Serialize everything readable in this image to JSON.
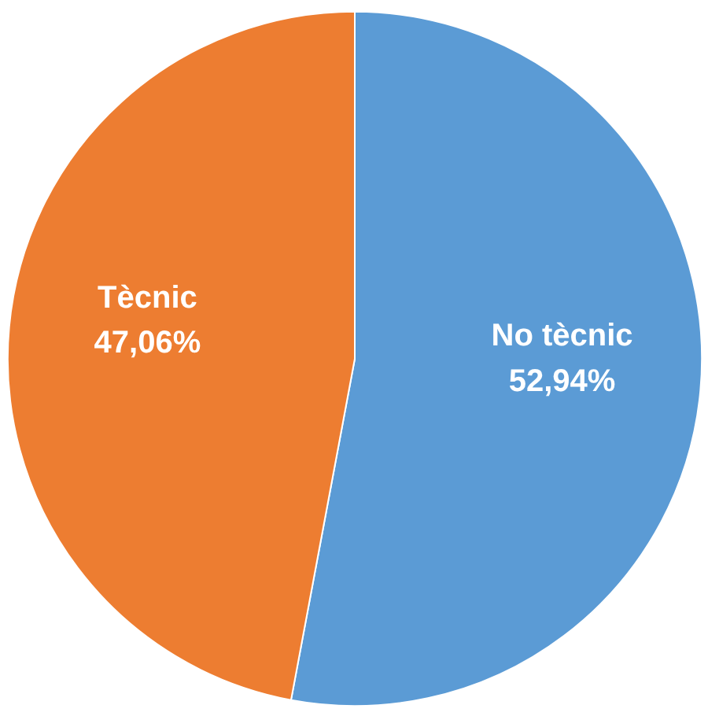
{
  "chart_data": {
    "type": "pie",
    "categories": [
      "No tècnic",
      "Tècnic"
    ],
    "values": [
      52.94,
      47.06
    ],
    "colors": [
      "#5b9bd5",
      "#ed7d31"
    ],
    "value_labels": [
      "52,94%",
      "47,06%"
    ]
  }
}
